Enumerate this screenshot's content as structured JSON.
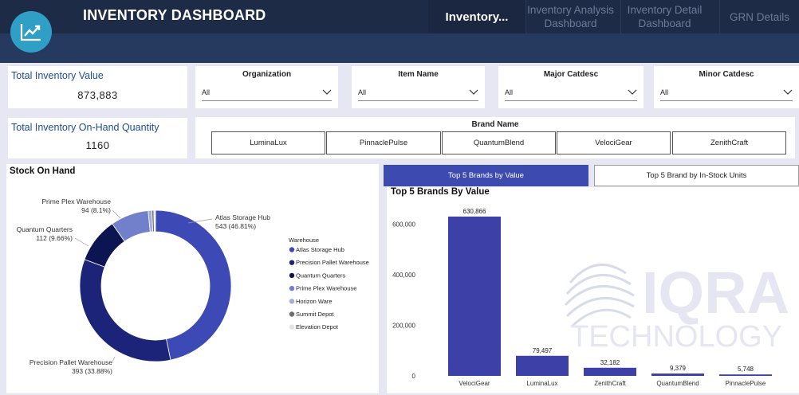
{
  "header": {
    "title": "INVENTORY DASHBOARD",
    "logo_icon": "trend-chart-icon",
    "nav": [
      {
        "label": "Inventory...",
        "active": true
      },
      {
        "label": "Inventory Analysis Dashboard",
        "active": false
      },
      {
        "label": "Inventory Detail Dashboard",
        "active": false
      },
      {
        "label": "GRN Details",
        "active": false
      }
    ]
  },
  "kpis": {
    "total_value_label": "Total Inventory Value",
    "total_value": "873,883",
    "on_hand_label": "Total Inventory On-Hand Quantity",
    "on_hand": "1160"
  },
  "filters": [
    {
      "label": "Organization",
      "value": "All"
    },
    {
      "label": "Item Name",
      "value": "All"
    },
    {
      "label": "Major Catdesc",
      "value": "All"
    },
    {
      "label": "Minor Catdesc",
      "value": "All"
    }
  ],
  "brand_slicer": {
    "label": "Brand Name",
    "options": [
      "LuminaLux",
      "PinnaclePulse",
      "QuantumBlend",
      "VelociGear",
      "ZenithCraft"
    ]
  },
  "tabs": {
    "active": "Top 5 Brands by Value",
    "inactive": "Top 5 Brand by In-Stock Units"
  },
  "watermark": {
    "line1": "IQRA",
    "line2": "TECHNOLOGY"
  },
  "chart_data": [
    {
      "type": "pie",
      "title": "Stock On Hand",
      "legend_title": "Warehouse",
      "legend_position": "right",
      "slices": [
        {
          "name": "Atlas Storage Hub",
          "value": 543,
          "label": "543 (46.81%)",
          "color": "#3d4ab6"
        },
        {
          "name": "Precision Pallet Warehouse",
          "value": 393,
          "label": "393 (33.88%)",
          "color": "#1b2479"
        },
        {
          "name": "Quantum Quarters",
          "value": 112,
          "label": "112 (9.66%)",
          "color": "#0c1452"
        },
        {
          "name": "Prime Plex Warehouse",
          "value": 94,
          "label": "94 (8.1%)",
          "color": "#7280cc"
        },
        {
          "name": "Horizon Ware",
          "value": 9,
          "label": "",
          "color": "#a3aee0"
        },
        {
          "name": "Summit Depot",
          "value": 5,
          "label": "",
          "color": "#6f6f6f"
        },
        {
          "name": "Elevation Depot",
          "value": 4,
          "label": "",
          "color": "#e4e4e4"
        }
      ]
    },
    {
      "type": "bar",
      "title": "Top 5 Brands By Value",
      "categories": [
        "VelociGear",
        "LuminaLux",
        "ZenithCraft",
        "QuantumBlend",
        "PinnaclePulse"
      ],
      "values": [
        630866,
        79497,
        32182,
        9379,
        5748
      ],
      "value_labels": [
        "630,866",
        "79,497",
        "32,182",
        "9,379",
        "5,748"
      ],
      "yticks": [
        "0",
        "200,000",
        "400,000",
        "600,000"
      ],
      "ylim": [
        0,
        700000
      ],
      "color": "#3d40a7"
    }
  ]
}
